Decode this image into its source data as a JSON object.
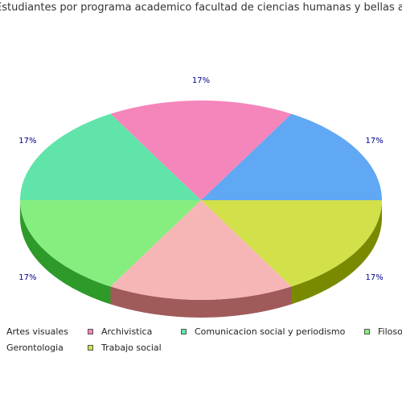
{
  "chart_data": {
    "type": "pie",
    "title": "Estudiantes por programa academico facultad de ciencias humanas y bellas artes",
    "slices": [
      {
        "label": "Artes visuales",
        "value": 16.67,
        "display": "17%",
        "color": "#60a8f4",
        "side": "#3a6fa8"
      },
      {
        "label": "Archivistica",
        "value": 16.67,
        "display": "17%",
        "color": "#f486bc",
        "side": "#a8547e"
      },
      {
        "label": "Comunicacion social y periodismo",
        "value": 16.67,
        "display": "17%",
        "color": "#60e4aa",
        "side": "#3a9a6e"
      },
      {
        "label": "Filosofia",
        "value": 16.67,
        "display": "17%",
        "color": "#86ee7e",
        "side": "#2e9a2a"
      },
      {
        "label": "Gerontologia",
        "value": 16.67,
        "display": "17%",
        "color": "#f6b6b6",
        "side": "#a05a5a"
      },
      {
        "label": "Trabajo social",
        "value": 16.67,
        "display": "17%",
        "color": "#d2e04a",
        "side": "#7a8a00"
      }
    ],
    "legend_position": "bottom-left"
  }
}
